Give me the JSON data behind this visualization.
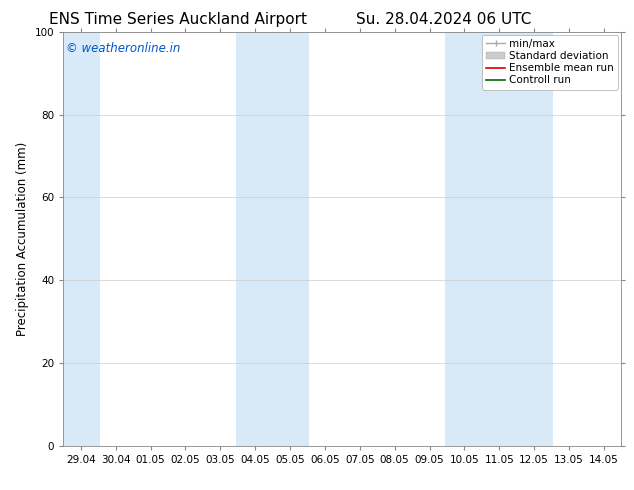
{
  "title_left": "ENS Time Series Auckland Airport",
  "title_right": "Su. 28.04.2024 06 UTC",
  "ylabel": "Precipitation Accumulation (mm)",
  "watermark": "© weatheronline.in",
  "watermark_color": "#0055cc",
  "ylim": [
    0,
    100
  ],
  "yticks": [
    0,
    20,
    40,
    60,
    80,
    100
  ],
  "x_tick_labels": [
    "29.04",
    "30.04",
    "01.05",
    "02.05",
    "03.05",
    "04.05",
    "05.05",
    "06.05",
    "07.05",
    "08.05",
    "09.05",
    "10.05",
    "11.05",
    "12.05",
    "13.05",
    "14.05"
  ],
  "x_tick_positions": [
    0,
    1,
    2,
    3,
    4,
    5,
    6,
    7,
    8,
    9,
    10,
    11,
    12,
    13,
    14,
    15
  ],
  "xlim": [
    -0.5,
    15.5
  ],
  "shaded_bands": [
    {
      "xmin": -0.5,
      "xmax": 0.55,
      "color": "#d8eaf8"
    },
    {
      "xmin": 4.45,
      "xmax": 6.55,
      "color": "#d8eaf8"
    },
    {
      "xmin": 10.45,
      "xmax": 13.55,
      "color": "#d8eaf8"
    }
  ],
  "bg_color": "#ffffff",
  "plot_bg_color": "#ffffff",
  "title_fontsize": 11,
  "tick_fontsize": 7.5,
  "ylabel_fontsize": 8.5,
  "legend_fontsize": 7.5,
  "watermark_fontsize": 8.5
}
